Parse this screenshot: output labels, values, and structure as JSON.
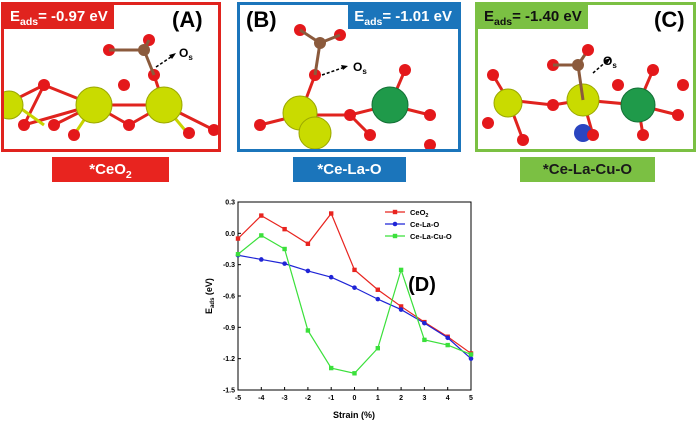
{
  "panels": [
    {
      "letter": "(A)",
      "energy_label": "E",
      "energy_sub": "ads",
      "energy_value": "= -0.97 eV",
      "site_label": "*CeO",
      "site_sub": "2",
      "os_label": "O",
      "os_sub": "s",
      "frame_color": "#e0231e"
    },
    {
      "letter": "(B)",
      "energy_label": "E",
      "energy_sub": "ads",
      "energy_value": "= -1.01 eV",
      "site_label": "*Ce-La-O",
      "site_sub": "",
      "os_label": "O",
      "os_sub": "s",
      "frame_color": "#1b75bb"
    },
    {
      "letter": "(C)",
      "energy_label": "E",
      "energy_sub": "ads",
      "energy_value": "= -1.40 eV",
      "site_label": "*Ce-La-Cu-O",
      "site_sub": "",
      "os_label": "O",
      "os_sub": "s",
      "frame_color": "#7bc043"
    }
  ],
  "chart_data": {
    "type": "line",
    "panel_letter": "(D)",
    "xlabel": "Strain (%)",
    "ylabel_main": "E",
    "ylabel_sub": "ads",
    "ylabel_unit": " (eV)",
    "xlim": [
      -5,
      5
    ],
    "ylim": [
      -1.5,
      0.3
    ],
    "xticks": [
      "-5",
      "-4",
      "-3",
      "-2",
      "-1",
      "0",
      "1",
      "2",
      "3",
      "4",
      "5"
    ],
    "yticks": [
      "0.3",
      "0.0",
      "-0.3",
      "-0.6",
      "-0.9",
      "-1.2",
      "-1.5"
    ],
    "x": [
      -5,
      -4,
      -3,
      -2,
      -1,
      0,
      1,
      2,
      3,
      4,
      5
    ],
    "series": [
      {
        "name": "CeO",
        "name_sub": "2",
        "color": "#e8241f",
        "marker": "square",
        "values": [
          -0.05,
          0.17,
          0.04,
          -0.1,
          0.19,
          -0.35,
          -0.54,
          -0.7,
          -0.85,
          -0.99,
          -1.15
        ]
      },
      {
        "name": "Ce-La-O",
        "name_sub": "",
        "color": "#1f24d6",
        "marker": "circle",
        "values": [
          -0.21,
          -0.25,
          -0.29,
          -0.36,
          -0.42,
          -0.52,
          -0.63,
          -0.73,
          -0.86,
          -1.0,
          -1.2
        ]
      },
      {
        "name": "Ce-La-Cu-O",
        "name_sub": "",
        "color": "#3be03b",
        "marker": "square",
        "values": [
          -0.2,
          -0.02,
          -0.15,
          -0.93,
          -1.29,
          -1.34,
          -1.1,
          -0.35,
          -1.02,
          -1.07,
          -1.16
        ]
      }
    ]
  }
}
